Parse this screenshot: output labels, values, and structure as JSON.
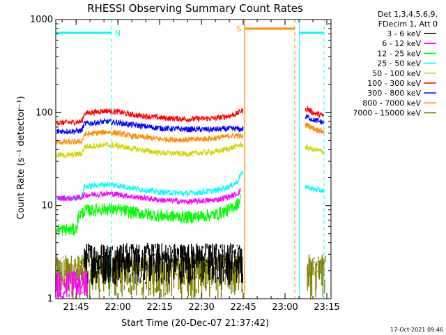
{
  "colors": {
    "background": "#ffffff",
    "axis": "#000000",
    "interval_line": "#00ffff",
    "orbit_dashed": "#00ffff",
    "saa_line": "#ff8c00",
    "saa_dashed": "#ff8c00"
  },
  "chart_data": {
    "type": "line",
    "title": "RHESSI Observing Summary Count Rates",
    "xlabel": "Start Time (20-Dec-07 21:37:42)",
    "ylabel": "Count Rate (s⁻¹ detector⁻¹)",
    "yscale": "log",
    "ylim": [
      1,
      1000
    ],
    "xlim": [
      "21:37:42",
      "23:16:30"
    ],
    "x_ticks": [
      "21:45",
      "22:00",
      "22:15",
      "22:30",
      "22:45",
      "23:00",
      "23:15"
    ],
    "y_ticks": [
      "1",
      "10",
      "100",
      "1000"
    ],
    "grid": false,
    "legend_position": "right",
    "legend_header": [
      "Det 1,3,4,5,6,9,",
      "FDecim 1, Att 0"
    ],
    "series": [
      {
        "name": "3 - 6 keV",
        "color": "#000000"
      },
      {
        "name": "6 - 12 keV",
        "color": "#ff00ff"
      },
      {
        "name": "12 - 25 keV",
        "color": "#00ff00"
      },
      {
        "name": "25 - 50 keV",
        "color": "#00ffff"
      },
      {
        "name": "50 - 100 keV",
        "color": "#d4d400"
      },
      {
        "name": "100 - 300 keV",
        "color": "#ff0000"
      },
      {
        "name": "300 - 800 keV",
        "color": "#0000ff"
      },
      {
        "name": "800 - 7000 keV",
        "color": "#ff8c00"
      },
      {
        "name": "7000 - 15000 keV",
        "color": "#808000"
      }
    ],
    "series_values": {
      "100 - 300 keV": {
        "x": [
          "21:38",
          "21:43",
          "21:47",
          "21:48",
          "21:56",
          "22:00",
          "22:05",
          "22:15",
          "22:25",
          "22:35",
          "22:40",
          "22:43",
          "22:44",
          "23:08",
          "23:10",
          "23:14"
        ],
        "y": [
          78,
          78,
          80,
          98,
          105,
          102,
          95,
          88,
          85,
          87,
          92,
          98,
          104,
          110,
          100,
          92
        ]
      },
      "300 - 800 keV": {
        "x": [
          "21:38",
          "21:43",
          "21:47",
          "21:48",
          "21:56",
          "22:00",
          "22:05",
          "22:15",
          "22:25",
          "22:35",
          "22:40",
          "22:43",
          "22:44",
          "23:08",
          "23:10",
          "23:14"
        ],
        "y": [
          63,
          63,
          64,
          76,
          80,
          78,
          74,
          68,
          66,
          66,
          67,
          67,
          66,
          90,
          84,
          78
        ]
      },
      "800 - 7000 keV": {
        "x": [
          "21:38",
          "21:43",
          "21:47",
          "21:48",
          "21:56",
          "22:00",
          "22:05",
          "22:15",
          "22:25",
          "22:35",
          "22:40",
          "22:43",
          "22:44",
          "23:08",
          "23:10",
          "23:14"
        ],
        "y": [
          48,
          48,
          49,
          58,
          62,
          60,
          56,
          52,
          51,
          53,
          56,
          57,
          55,
          74,
          68,
          62
        ]
      },
      "50 - 100 keV": {
        "x": [
          "21:38",
          "21:43",
          "21:47",
          "21:48",
          "21:56",
          "22:00",
          "22:05",
          "22:15",
          "22:25",
          "22:35",
          "22:40",
          "22:43",
          "22:44",
          "23:08",
          "23:10",
          "23:14"
        ],
        "y": [
          35,
          35,
          36,
          43,
          45,
          44,
          41,
          37,
          36,
          38,
          41,
          44,
          45,
          42,
          40,
          38
        ]
      },
      "25 - 50 keV": {
        "x": [
          "21:38",
          "21:43",
          "21:47",
          "21:48",
          "21:56",
          "22:00",
          "22:05",
          "22:15",
          "22:25",
          "22:35",
          "22:40",
          "22:43",
          "22:44",
          "23:08",
          "23:10",
          "23:14"
        ],
        "y": [
          12,
          12,
          12.5,
          16,
          17,
          16.5,
          15.5,
          14,
          13.5,
          14.5,
          16,
          18,
          22,
          16,
          15,
          14.5
        ]
      },
      "6 - 12 keV": {
        "x": [
          "21:38",
          "21:43",
          "21:47",
          "21:48",
          "21:56",
          "22:00",
          "22:05",
          "22:15",
          "22:25",
          "22:35",
          "22:40",
          "22:43",
          "22:44"
        ],
        "y": [
          12,
          12,
          12.3,
          13,
          13.5,
          13.2,
          12.5,
          11.5,
          11,
          11.5,
          12.5,
          13.5,
          14.5
        ]
      },
      "12 - 25 keV": {
        "x": [
          "21:38",
          "21:45",
          "21:46",
          "21:47",
          "21:48",
          "21:56",
          "22:00",
          "22:05",
          "22:15",
          "22:25",
          "22:35",
          "22:40",
          "22:43",
          "22:44"
        ],
        "y": [
          5.5,
          5.5,
          8,
          8.2,
          8.8,
          9.2,
          9,
          8.5,
          7.8,
          7.5,
          8,
          9,
          10.5,
          12
        ]
      }
    },
    "intervals": {
      "night_label": "N",
      "saa_label": "S",
      "night_solid": [
        [
          "21:37:42",
          "21:57:40"
        ],
        [
          "23:05:10",
          "23:14:00"
        ]
      ],
      "night_dashed": [
        "21:57:40",
        "23:14:00"
      ],
      "saa_solid": [
        "22:45:30",
        "23:03:30"
      ],
      "saa_dashed": [
        "22:45:30",
        "23:03:30"
      ],
      "data_gaps": [
        [
          "22:45:00",
          "23:07:20"
        ]
      ]
    }
  },
  "footer": {
    "timestamp": "17-Oct-2021 09:46"
  }
}
